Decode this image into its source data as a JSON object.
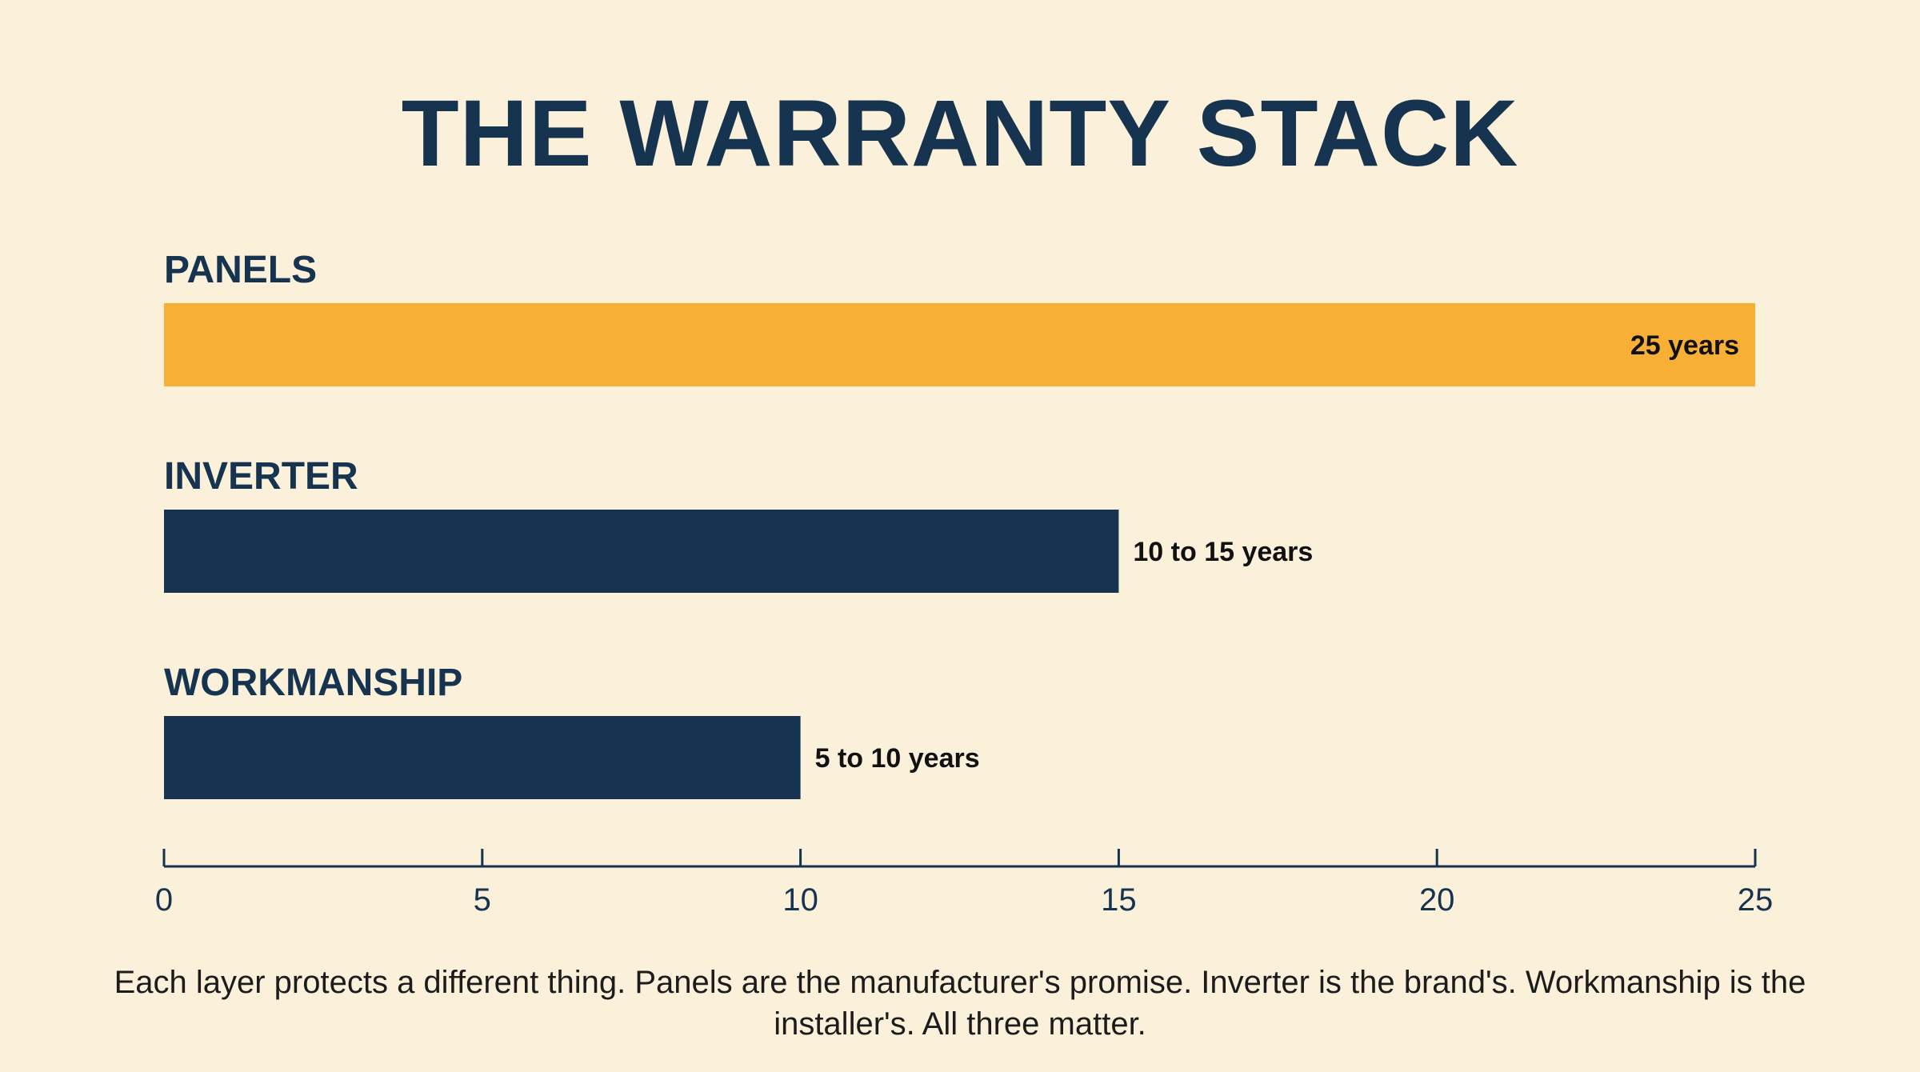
{
  "chart_data": {
    "type": "bar",
    "orientation": "horizontal",
    "title": "THE WARRANTY STACK",
    "categories": [
      "PANELS",
      "INVERTER",
      "WORKMANSHIP"
    ],
    "values": [
      25,
      15,
      10
    ],
    "value_labels": [
      "25 years",
      "10 to 15 years",
      "5 to 10 years"
    ],
    "colors": [
      "#f7b035",
      "#163450",
      "#163450"
    ],
    "xlim": [
      0,
      25
    ],
    "xticks": [
      0,
      5,
      10,
      15,
      20,
      25
    ],
    "xtick_labels": [
      "0",
      "5",
      "10",
      "15",
      "20",
      "25"
    ],
    "xlabel": "",
    "ylabel": "",
    "grid": false,
    "legend": "none"
  },
  "caption": "Each layer protects a different thing. Panels are the manufacturer's promise. Inverter is the brand's. Workmanship is the installer's. All three matter."
}
